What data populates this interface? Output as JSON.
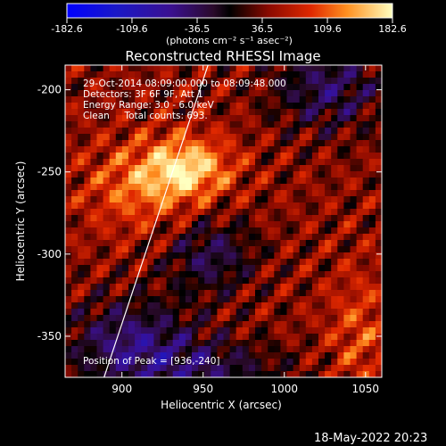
{
  "colorbar": {
    "ticks": [
      "-182.6",
      "-109.6",
      "-36.5",
      "36.5",
      "109.6",
      "182.6"
    ],
    "unit_label": "(photons cm⁻² s⁻¹ asec⁻²)",
    "range": [
      -182.6,
      182.6
    ]
  },
  "chart_data": {
    "type": "heatmap",
    "title": "Reconstructed RHESSI Image",
    "xlabel": "Heliocentric X (arcsec)",
    "ylabel": "Heliocentric Y (arcsec)",
    "xlim": [
      865,
      1060
    ],
    "ylim": [
      -375,
      -185
    ],
    "xticks": [
      "900",
      "950",
      "1000",
      "1050"
    ],
    "yticks": [
      "-200",
      "-250",
      "-300",
      "-350"
    ],
    "xtick_values": [
      900,
      950,
      1000,
      1050
    ],
    "ytick_values": [
      -200,
      -250,
      -300,
      -350
    ],
    "peak": [
      936,
      -240
    ],
    "limb_line": [
      [
        889,
        -375
      ],
      [
        953,
        -185
      ]
    ],
    "annotations": [
      "29-Oct-2014 08:09:00.000 to 08:09:48.000",
      "Detectors: 3F 6F 9F, Att 1",
      "Energy Range: 3.0 - 6.0 keV",
      "Clean     Total counts: 693.",
      "Position of Peak = [936,-240]"
    ]
  },
  "footer": {
    "timestamp": "18-May-2022 20:23"
  }
}
